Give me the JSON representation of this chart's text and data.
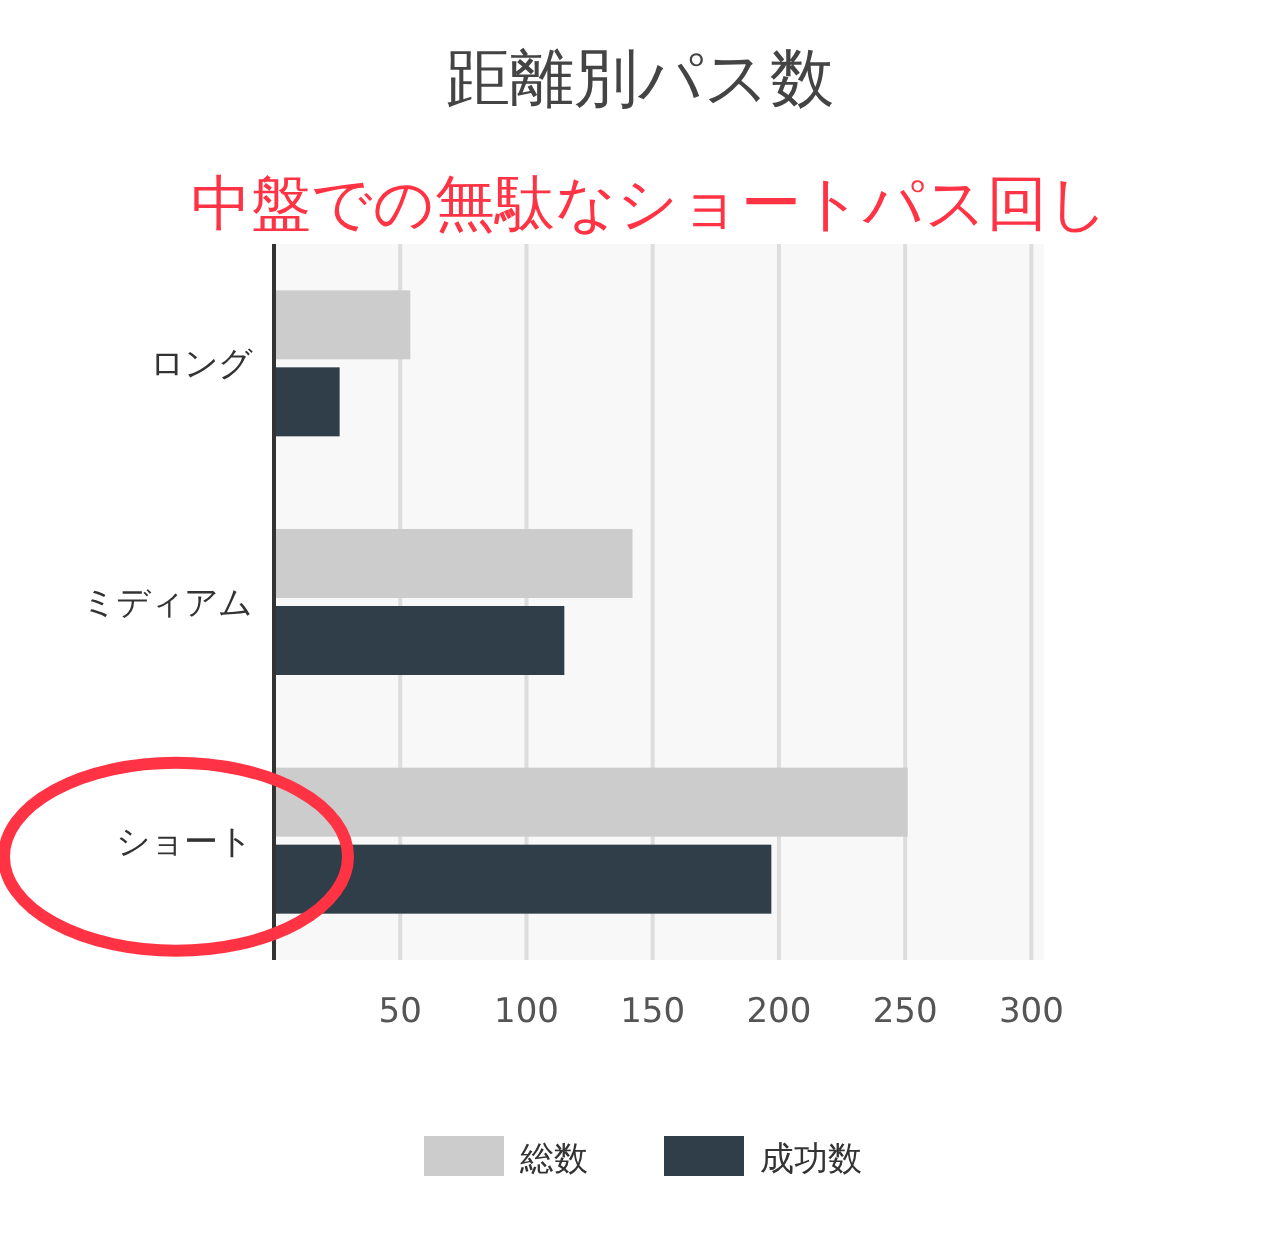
{
  "chart_data": {
    "type": "bar",
    "orientation": "horizontal",
    "title": "距離別パス数",
    "annotations": [
      "中盤での無駄なショートパス回し"
    ],
    "categories": [
      "ロング",
      "ミディアム",
      "ショート"
    ],
    "series": [
      {
        "name": "総数",
        "color": "#cccccc",
        "values": [
          54,
          142,
          251
        ]
      },
      {
        "name": "成功数",
        "color": "#2f3e48",
        "values": [
          26,
          115,
          197
        ]
      }
    ],
    "xlim": [
      0,
      305
    ],
    "xticks": [
      50,
      100,
      150,
      200,
      250,
      300
    ],
    "grid": "x",
    "legend": "bottom"
  }
}
